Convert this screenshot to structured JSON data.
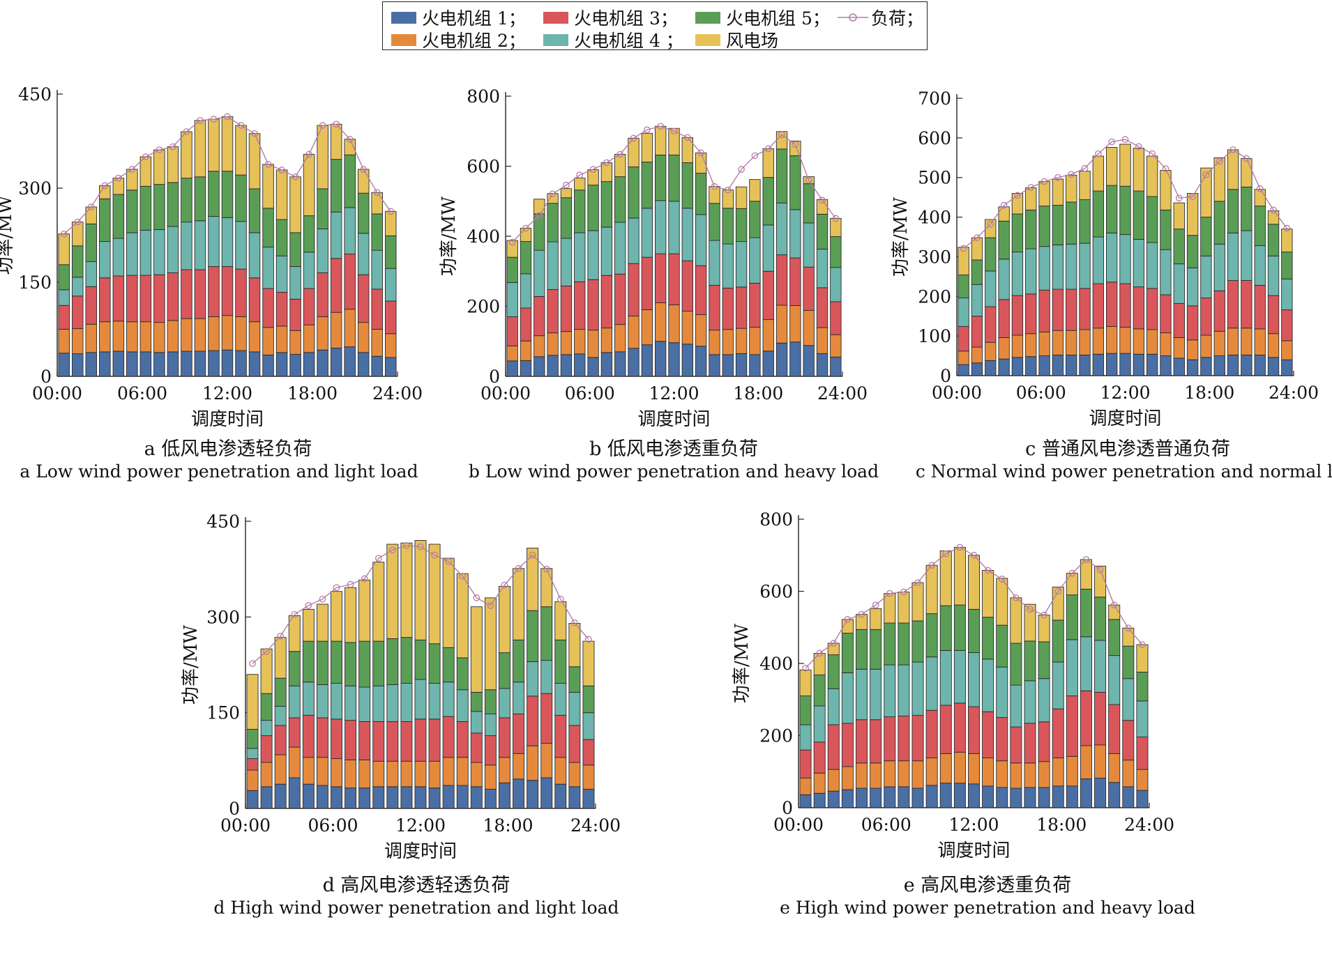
{
  "legend": {
    "items": [
      {
        "label": "火电机组 1；",
        "color": "#4a6fa5"
      },
      {
        "label": "火电机组 2；",
        "color": "#e58a3c"
      },
      {
        "label": "火电机组 3；",
        "color": "#d9575b"
      },
      {
        "label": "火电机组 4 ；",
        "color": "#6db5ad"
      },
      {
        "label": "火电机组 5；",
        "color": "#5a9e56"
      },
      {
        "label": "风电场",
        "color": "#e6c158"
      },
      {
        "label": "负荷；",
        "color": "#b57ba7"
      }
    ]
  },
  "chart_data": [
    {
      "id": "a",
      "type": "bar",
      "stacked": true,
      "x_ticks": [
        "00:00",
        "06:00",
        "12:00",
        "18:00",
        "24:00"
      ],
      "xlabel": "调度时间",
      "ylabel": "功率/MW",
      "ylim": [
        0,
        450
      ],
      "y_ticks": [
        0,
        150,
        300,
        450
      ],
      "caption_zh": "a  低风电渗透轻负荷",
      "caption_en": "a  Low wind power penetration and light load",
      "series": [
        {
          "name": "火电机组 1",
          "values": [
            37,
            36,
            38,
            39,
            40,
            39,
            39,
            38,
            39,
            40,
            40,
            41,
            42,
            41,
            39,
            34,
            38,
            35,
            38,
            42,
            45,
            47,
            38,
            32,
            30
          ]
        },
        {
          "name": "火电机组 2",
          "values": [
            38,
            40,
            45,
            48,
            48,
            48,
            48,
            48,
            50,
            52,
            52,
            54,
            55,
            54,
            48,
            44,
            42,
            38,
            44,
            53,
            57,
            60,
            48,
            43,
            38
          ]
        },
        {
          "name": "火电机组 3",
          "values": [
            38,
            52,
            60,
            70,
            72,
            74,
            74,
            76,
            76,
            78,
            78,
            80,
            78,
            76,
            70,
            62,
            54,
            50,
            58,
            70,
            86,
            88,
            76,
            64,
            52
          ]
        },
        {
          "name": "火电机组 4",
          "values": [
            25,
            30,
            40,
            58,
            60,
            68,
            72,
            72,
            74,
            76,
            78,
            80,
            78,
            76,
            72,
            66,
            58,
            52,
            58,
            70,
            74,
            74,
            66,
            62,
            52
          ]
        },
        {
          "name": "火电机组 5",
          "values": [
            40,
            50,
            60,
            68,
            70,
            68,
            70,
            72,
            70,
            70,
            70,
            72,
            74,
            74,
            70,
            62,
            58,
            54,
            58,
            64,
            84,
            84,
            64,
            58,
            52
          ]
        },
        {
          "name": "风电场",
          "values": [
            49,
            38,
            27,
            21,
            26,
            33,
            47,
            55,
            57,
            74,
            90,
            83,
            87,
            79,
            88,
            70,
            79,
            89,
            98,
            101,
            56,
            25,
            38,
            34,
            39
          ]
        }
      ],
      "load": [
        227,
        246,
        270,
        304,
        316,
        330,
        350,
        361,
        366,
        390,
        408,
        410,
        414,
        400,
        387,
        338,
        329,
        318,
        354,
        400,
        402,
        378,
        330,
        293,
        263
      ]
    },
    {
      "id": "b",
      "type": "bar",
      "stacked": true,
      "x_ticks": [
        "00:00",
        "06:00",
        "12:00",
        "18:00",
        "24:00"
      ],
      "xlabel": "调度时间",
      "ylabel": "功率/MW",
      "ylim": [
        0,
        800
      ],
      "y_ticks": [
        0,
        200,
        400,
        600,
        800
      ],
      "caption_zh": "b  低风电渗透重负荷",
      "caption_en": "b  Low wind power penetration and heavy load",
      "series": [
        {
          "name": "火电机组 1",
          "values": [
            44,
            45,
            56,
            60,
            62,
            64,
            54,
            68,
            70,
            80,
            90,
            100,
            96,
            92,
            86,
            62,
            62,
            65,
            62,
            72,
            95,
            98,
            88,
            65,
            55
          ]
        },
        {
          "name": "火电机组 2",
          "values": [
            43,
            56,
            60,
            64,
            66,
            70,
            78,
            70,
            78,
            92,
            100,
            110,
            108,
            94,
            90,
            70,
            72,
            72,
            78,
            90,
            108,
            104,
            100,
            74,
            64
          ]
        },
        {
          "name": "火电机组 3",
          "values": [
            83,
            94,
            112,
            124,
            130,
            136,
            144,
            150,
            144,
            150,
            150,
            140,
            146,
            144,
            140,
            128,
            118,
            118,
            126,
            138,
            144,
            136,
            124,
            114,
            94
          ]
        },
        {
          "name": "火电机组 4",
          "values": [
            98,
            98,
            132,
            136,
            136,
            140,
            140,
            138,
            148,
            130,
            140,
            152,
            150,
            150,
            146,
            128,
            126,
            130,
            130,
            132,
            148,
            138,
            126,
            110,
            98
          ]
        },
        {
          "name": "火电机组 5",
          "values": [
            72,
            92,
            104,
            110,
            116,
            122,
            130,
            130,
            130,
            146,
            132,
            130,
            132,
            130,
            118,
            106,
            102,
            94,
            104,
            136,
            154,
            154,
            112,
            100,
            88
          ]
        },
        {
          "name": "风电场",
          "values": [
            48,
            38,
            42,
            28,
            26,
            34,
            44,
            54,
            64,
            82,
            82,
            82,
            76,
            72,
            58,
            48,
            52,
            62,
            62,
            82,
            50,
            42,
            20,
            42,
            52
          ]
        }
      ],
      "load": [
        383,
        423,
        459,
        521,
        546,
        575,
        591,
        610,
        634,
        680,
        704,
        714,
        700,
        682,
        638,
        542,
        532,
        591,
        630,
        650,
        690,
        662,
        560,
        503,
        451
      ]
    },
    {
      "id": "c",
      "type": "bar",
      "stacked": true,
      "x_ticks": [
        "00:00",
        "06:00",
        "12:00",
        "18:00",
        "24:00"
      ],
      "xlabel": "调度时间",
      "ylabel": "功率/MW",
      "ylim": [
        0,
        700
      ],
      "y_ticks": [
        0,
        100,
        200,
        300,
        400,
        500,
        600,
        700
      ],
      "caption_zh": "c  普通风电渗透普通负荷",
      "caption_en": "c  Normal wind power penetration and normal load",
      "series": [
        {
          "name": "火电机组 1",
          "values": [
            28,
            32,
            38,
            42,
            46,
            48,
            50,
            52,
            52,
            52,
            54,
            56,
            56,
            54,
            54,
            50,
            44,
            40,
            46,
            50,
            52,
            52,
            52,
            46,
            40
          ]
        },
        {
          "name": "火电机组 2",
          "values": [
            34,
            40,
            46,
            54,
            56,
            58,
            60,
            62,
            62,
            64,
            66,
            68,
            66,
            64,
            62,
            58,
            52,
            50,
            56,
            62,
            68,
            68,
            66,
            60,
            48
          ]
        },
        {
          "name": "火电机组 3",
          "values": [
            62,
            78,
            90,
            96,
            100,
            100,
            106,
            104,
            104,
            104,
            112,
            112,
            110,
            106,
            104,
            96,
            86,
            86,
            94,
            102,
            120,
            120,
            110,
            96,
            78
          ]
        },
        {
          "name": "火电机组 4",
          "values": [
            72,
            80,
            90,
            102,
            110,
            114,
            110,
            112,
            114,
            114,
            118,
            124,
            124,
            120,
            116,
            114,
            100,
            96,
            106,
            118,
            120,
            126,
            100,
            100,
            78
          ]
        },
        {
          "name": "火电机组 5",
          "values": [
            58,
            62,
            84,
            96,
            96,
            98,
            102,
            100,
            106,
            110,
            116,
            120,
            122,
            122,
            116,
            100,
            88,
            82,
            98,
            108,
            110,
            110,
            100,
            80,
            68
          ]
        },
        {
          "name": "风电场",
          "values": [
            70,
            56,
            46,
            36,
            52,
            56,
            62,
            66,
            68,
            72,
            88,
            96,
            106,
            108,
            102,
            100,
            66,
            106,
            124,
            110,
            100,
            72,
            42,
            34,
            58
          ]
        }
      ],
      "load": [
        321,
        348,
        382,
        430,
        455,
        475,
        490,
        500,
        508,
        523,
        560,
        590,
        596,
        578,
        560,
        522,
        448,
        452,
        507,
        541,
        570,
        548,
        472,
        418,
        372
      ]
    },
    {
      "id": "d",
      "type": "bar",
      "stacked": true,
      "x_ticks": [
        "00:00",
        "06:00",
        "12:00",
        "18:00",
        "24:00"
      ],
      "xlabel": "调度时间",
      "ylabel": "功率/MW",
      "ylim": [
        0,
        450
      ],
      "y_ticks": [
        0,
        150,
        300,
        450
      ],
      "caption_zh": "d  高风电渗透轻透负荷",
      "caption_en": "d  High wind power penetration and light load",
      "series": [
        {
          "name": "火电机组 1",
          "values": [
            28,
            34,
            38,
            48,
            38,
            36,
            34,
            32,
            32,
            34,
            34,
            34,
            34,
            32,
            36,
            36,
            34,
            30,
            40,
            46,
            44,
            48,
            38,
            34,
            30
          ]
        },
        {
          "name": "火电机组 2",
          "values": [
            32,
            38,
            46,
            48,
            42,
            44,
            44,
            44,
            44,
            40,
            40,
            40,
            40,
            42,
            44,
            44,
            38,
            38,
            40,
            40,
            54,
            54,
            42,
            38,
            38
          ]
        },
        {
          "name": "火电机组 3",
          "values": [
            18,
            42,
            46,
            46,
            66,
            62,
            62,
            62,
            60,
            62,
            62,
            62,
            66,
            66,
            64,
            56,
            46,
            46,
            62,
            62,
            78,
            78,
            66,
            58,
            40
          ]
        },
        {
          "name": "火电机组 4",
          "values": [
            16,
            24,
            30,
            50,
            52,
            52,
            56,
            54,
            54,
            56,
            58,
            60,
            62,
            56,
            54,
            50,
            34,
            34,
            46,
            50,
            54,
            52,
            50,
            52,
            42
          ]
        },
        {
          "name": "火电机组 5",
          "values": [
            30,
            42,
            44,
            54,
            64,
            68,
            66,
            68,
            72,
            70,
            72,
            72,
            62,
            62,
            54,
            50,
            30,
            38,
            56,
            66,
            80,
            84,
            68,
            40,
            42
          ]
        },
        {
          "name": "风电场",
          "values": [
            86,
            70,
            64,
            56,
            50,
            58,
            78,
            86,
            96,
            124,
            148,
            148,
            156,
            156,
            140,
            132,
            134,
            144,
            104,
            112,
            98,
            60,
            60,
            68,
            70
          ]
        }
      ],
      "load": [
        227,
        246,
        270,
        304,
        318,
        328,
        346,
        351,
        360,
        392,
        405,
        412,
        410,
        397,
        387,
        364,
        330,
        318,
        350,
        376,
        397,
        375,
        328,
        291,
        265
      ]
    },
    {
      "id": "e",
      "type": "bar",
      "stacked": true,
      "x_ticks": [
        "00:00",
        "06:00",
        "12:00",
        "18:00",
        "24:00"
      ],
      "xlabel": "调度时间",
      "ylabel": "功率/MW",
      "ylim": [
        0,
        800
      ],
      "y_ticks": [
        0,
        200,
        400,
        600,
        800
      ],
      "caption_zh": "e  高风电渗透重负荷",
      "caption_en": "e  High wind power penetration and heavy load",
      "series": [
        {
          "name": "火电机组 1",
          "values": [
            36,
            40,
            46,
            50,
            54,
            54,
            58,
            58,
            54,
            62,
            68,
            68,
            66,
            60,
            56,
            54,
            56,
            56,
            60,
            60,
            80,
            82,
            70,
            58,
            48
          ]
        },
        {
          "name": "火电机组 2",
          "values": [
            46,
            56,
            60,
            64,
            70,
            70,
            72,
            72,
            76,
            76,
            82,
            86,
            84,
            78,
            74,
            70,
            68,
            72,
            78,
            82,
            92,
            92,
            80,
            74,
            58
          ]
        },
        {
          "name": "火电机组 3",
          "values": [
            78,
            86,
            124,
            120,
            120,
            120,
            122,
            124,
            126,
            132,
            134,
            136,
            130,
            128,
            120,
            100,
            110,
            110,
            136,
            168,
            152,
            146,
            136,
            110,
            90
          ]
        },
        {
          "name": "火电机组 4",
          "values": [
            70,
            100,
            100,
            140,
            140,
            140,
            144,
            142,
            148,
            148,
            152,
            146,
            150,
            146,
            140,
            116,
            118,
            120,
            130,
            156,
            150,
            144,
            136,
            116,
            100
          ]
        },
        {
          "name": "火电机组 5",
          "values": [
            80,
            86,
            94,
            110,
            110,
            110,
            116,
            116,
            114,
            120,
            124,
            126,
            120,
            116,
            116,
            116,
            110,
            102,
            116,
            124,
            132,
            120,
            100,
            90,
            80
          ]
        },
        {
          "name": "风电场",
          "values": [
            72,
            60,
            32,
            38,
            42,
            58,
            82,
            86,
            106,
            134,
            152,
            160,
            150,
            130,
            130,
            126,
            102,
            74,
            92,
            60,
            82,
            86,
            40,
            50,
            76
          ]
        }
      ],
      "load": [
        387,
        428,
        456,
        522,
        536,
        562,
        594,
        598,
        624,
        672,
        704,
        722,
        700,
        658,
        634,
        582,
        550,
        534,
        600,
        650,
        688,
        660,
        562,
        498,
        452
      ]
    }
  ],
  "colors": {
    "unit1": "#4a6fa5",
    "unit2": "#e58a3c",
    "unit3": "#d9575b",
    "unit4": "#6db5ad",
    "unit5": "#5a9e56",
    "wind": "#e6c158",
    "load": "#b57ba7"
  }
}
